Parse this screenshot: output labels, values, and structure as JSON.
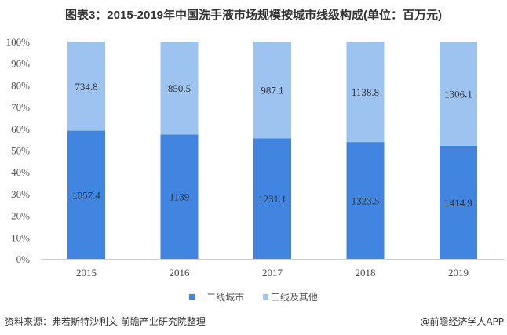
{
  "chart_data": {
    "type": "bar",
    "stacked": "percent",
    "title": "图表3：2015-2019年中国洗手液市场规模按城市线级构成(单位：百万元)",
    "categories": [
      "2015",
      "2016",
      "2017",
      "2018",
      "2019"
    ],
    "series": [
      {
        "name": "一二线城市",
        "values": [
          1057.4,
          1139,
          1231.1,
          1323.5,
          1414.9
        ],
        "labels": [
          "1057.4",
          "1139",
          "1231.1",
          "1323.5",
          "1414.9"
        ],
        "color": "#4185e0"
      },
      {
        "name": "三线及其他",
        "values": [
          734.8,
          850.5,
          987.1,
          1138.8,
          1306.1
        ],
        "labels": [
          "734.8",
          "850.5",
          "987.1",
          "1138.8",
          "1306.1"
        ],
        "color": "#9dc3f1"
      }
    ],
    "ylim": [
      0,
      100
    ],
    "yticks": [
      "0%",
      "10%",
      "20%",
      "30%",
      "40%",
      "50%",
      "60%",
      "70%",
      "80%",
      "90%",
      "100%"
    ],
    "grid": false,
    "legend_position": "bottom"
  },
  "footer": {
    "source": "资料来源：弗若斯特沙利文 前瞻产业研究院整理",
    "brand": "@前瞻经济学人APP"
  }
}
